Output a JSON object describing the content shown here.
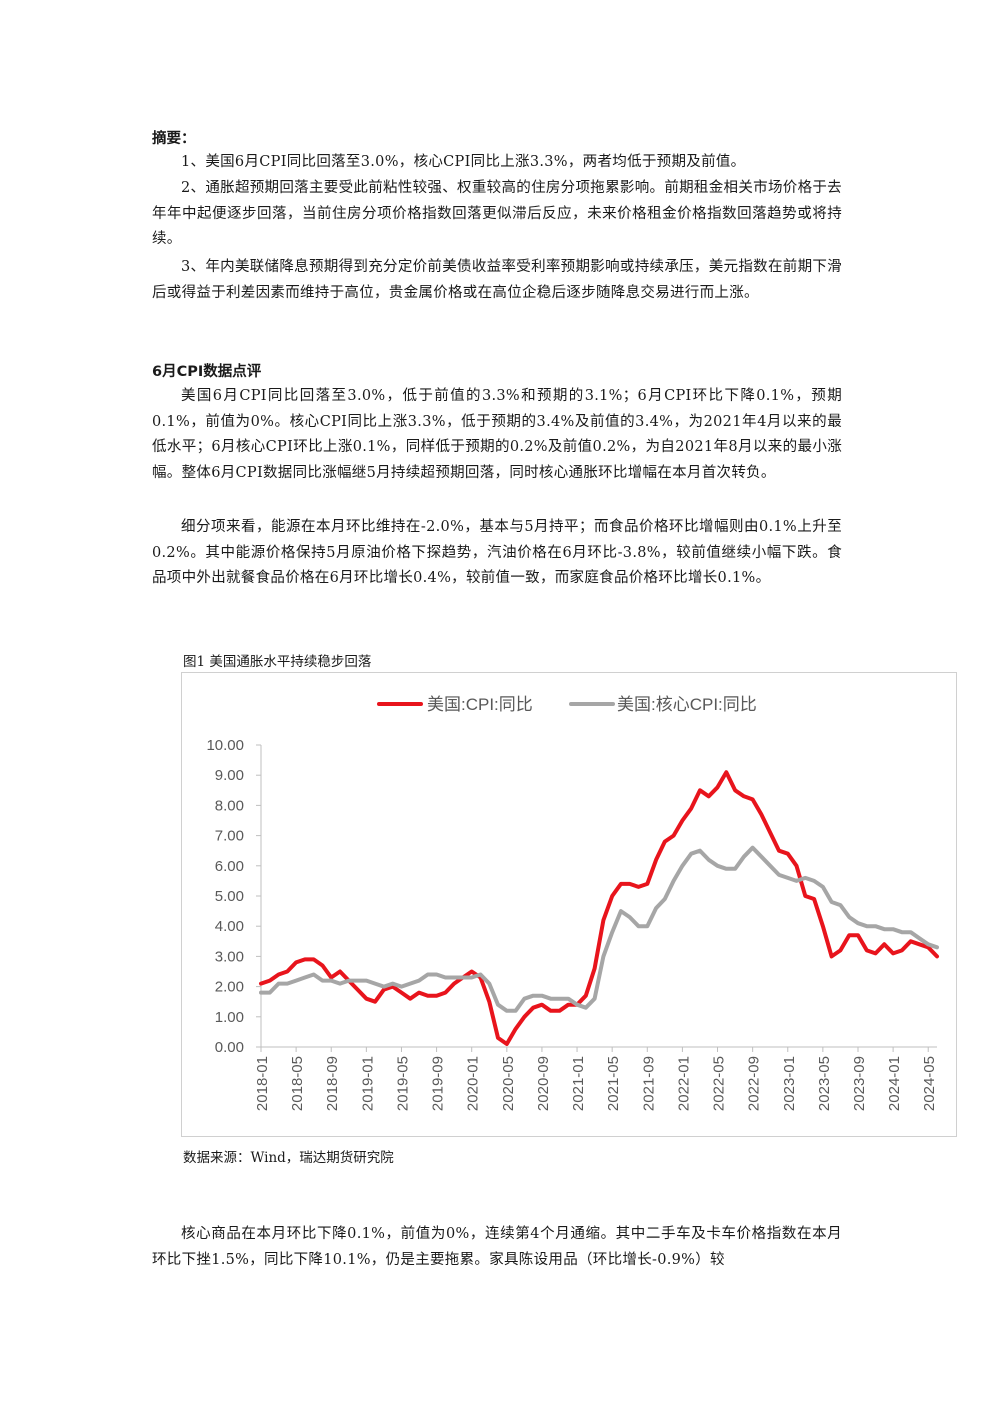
{
  "summary": {
    "heading": "摘要：",
    "items": [
      "1、美国6月CPI同比回落至3.0%，核心CPI同比上涨3.3%，两者均低于预期及前值。",
      "2、通胀超预期回落主要受此前粘性较强、权重较高的住房分项拖累影响。前期租金相关市场价格于去年年中起便逐步回落，当前住房分项价格指数回落更似滞后反应，未来价格租金价格指数回落趋势或将持续。",
      "3、年内美联储降息预期得到充分定价前美债收益率受利率预期影响或持续承压，美元指数在前期下滑后或得益于利差因素而维持于高位，贵金属价格或在高位企稳后逐步随降息交易进行而上涨。"
    ]
  },
  "section": {
    "heading": "6月CPI数据点评",
    "paragraphs": [
      "美国6月CPI同比回落至3.0%，低于前值的3.3%和预期的3.1%；6月CPI环比下降0.1%，预期0.1%，前值为0%。核心CPI同比上涨3.3%，低于预期的3.4%及前值的3.4%，为2021年4月以来的最低水平；6月核心CPI环比上涨0.1%，同样低于预期的0.2%及前值0.2%，为自2021年8月以来的最小涨幅。整体6月CPI数据同比涨幅继5月持续超预期回落，同时核心通胀环比增幅在本月首次转负。",
      "细分项来看，能源在本月环比维持在-2.0%，基本与5月持平；而食品价格环比增幅则由0.1%上升至0.2%。其中能源价格保持5月原油价格下探趋势，汽油价格在6月环比-3.8%，较前值继续小幅下跌。食品项中外出就餐食品价格在6月环比增长0.4%，较前值一致，而家庭食品价格环比增长0.1%。"
    ]
  },
  "figure": {
    "caption": "图1 美国通胀水平持续稳步回落",
    "source": "数据来源：Wind，瑞达期货研究院"
  },
  "chart_data": {
    "type": "line",
    "title": "",
    "xlabel": "",
    "ylabel": "",
    "ylim": [
      0,
      10
    ],
    "yticks": [
      "0.00",
      "1.00",
      "2.00",
      "3.00",
      "4.00",
      "5.00",
      "6.00",
      "7.00",
      "8.00",
      "9.00",
      "10.00"
    ],
    "xticks": [
      "2018-01",
      "2018-05",
      "2018-09",
      "2019-01",
      "2019-05",
      "2019-09",
      "2020-01",
      "2020-05",
      "2020-09",
      "2021-01",
      "2021-05",
      "2021-09",
      "2022-01",
      "2022-05",
      "2022-09",
      "2023-01",
      "2023-05",
      "2023-09",
      "2024-01",
      "2024-05"
    ],
    "x_start": "2018-01",
    "x_end": "2024-06",
    "legend": "top",
    "grid": false,
    "series": [
      {
        "name": "美国:CPI:同比",
        "color": "#e8141c",
        "values": [
          2.1,
          2.2,
          2.4,
          2.5,
          2.8,
          2.9,
          2.9,
          2.7,
          2.3,
          2.5,
          2.2,
          1.9,
          1.6,
          1.5,
          1.9,
          2.0,
          1.8,
          1.6,
          1.8,
          1.7,
          1.7,
          1.8,
          2.1,
          2.3,
          2.5,
          2.3,
          1.5,
          0.3,
          0.1,
          0.6,
          1.0,
          1.3,
          1.4,
          1.2,
          1.2,
          1.4,
          1.4,
          1.7,
          2.6,
          4.2,
          5.0,
          5.4,
          5.4,
          5.3,
          5.4,
          6.2,
          6.8,
          7.0,
          7.5,
          7.9,
          8.5,
          8.3,
          8.6,
          9.1,
          8.5,
          8.3,
          8.2,
          7.7,
          7.1,
          6.5,
          6.4,
          6.0,
          5.0,
          4.9,
          4.0,
          3.0,
          3.2,
          3.7,
          3.7,
          3.2,
          3.1,
          3.4,
          3.1,
          3.2,
          3.5,
          3.4,
          3.3,
          3.0
        ]
      },
      {
        "name": "美国:核心CPI:同比",
        "color": "#a6a6a6",
        "values": [
          1.8,
          1.8,
          2.1,
          2.1,
          2.2,
          2.3,
          2.4,
          2.2,
          2.2,
          2.1,
          2.2,
          2.2,
          2.2,
          2.1,
          2.0,
          2.1,
          2.0,
          2.1,
          2.2,
          2.4,
          2.4,
          2.3,
          2.3,
          2.3,
          2.3,
          2.4,
          2.1,
          1.4,
          1.2,
          1.2,
          1.6,
          1.7,
          1.7,
          1.6,
          1.6,
          1.6,
          1.4,
          1.3,
          1.6,
          3.0,
          3.8,
          4.5,
          4.3,
          4.0,
          4.0,
          4.6,
          4.9,
          5.5,
          6.0,
          6.4,
          6.5,
          6.2,
          6.0,
          5.9,
          5.9,
          6.3,
          6.6,
          6.3,
          6.0,
          5.7,
          5.6,
          5.5,
          5.6,
          5.5,
          5.3,
          4.8,
          4.7,
          4.3,
          4.1,
          4.0,
          4.0,
          3.9,
          3.9,
          3.8,
          3.8,
          3.6,
          3.4,
          3.3
        ]
      }
    ]
  },
  "bottom": {
    "paragraph": "核心商品在本月环比下降0.1%，前值为0%，连续第4个月通缩。其中二手车及卡车价格指数在本月环比下挫1.5%，同比下降10.1%，仍是主要拖累。家具陈设用品（环比增长-0.9%）较"
  }
}
